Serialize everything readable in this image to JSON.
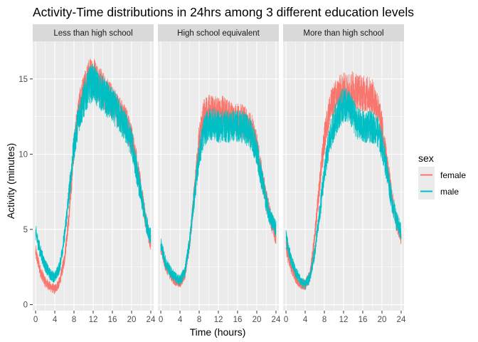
{
  "chart_data": {
    "type": "line",
    "title": "Activity-Time distributions in 24hrs among 3 different education levels",
    "xlabel": "Time (hours)",
    "ylabel": "Activity (minutes)",
    "xlim": [
      -0.6,
      24.6
    ],
    "ylim": [
      -0.4,
      17.5
    ],
    "x_ticks": [
      0,
      4,
      8,
      12,
      16,
      20,
      24
    ],
    "y_ticks": [
      0,
      5,
      10,
      15
    ],
    "grid": true,
    "legend": {
      "title": "sex",
      "position": "right",
      "entries": [
        "female",
        "male"
      ]
    },
    "colors": {
      "female": "#F8766D",
      "male": "#00BFC4",
      "panel_bg": "#EBEBEB",
      "strip_bg": "#D9D9D9",
      "grid": "#FFFFFF"
    },
    "facets": [
      {
        "label": "Less than high school",
        "series": [
          {
            "name": "female",
            "x": [
              0,
              1,
              2,
              3,
              4,
              5,
              6,
              7,
              8,
              9,
              10,
              11,
              12,
              13,
              14,
              15,
              16,
              17,
              18,
              19,
              20,
              21,
              22,
              23,
              24
            ],
            "y": [
              3.5,
              2.2,
              1.5,
              1.2,
              1.0,
              1.5,
              3.0,
              6.0,
              10.5,
              13.0,
              14.0,
              15.0,
              15.3,
              14.8,
              14.3,
              13.8,
              13.5,
              13.0,
              12.5,
              12.0,
              11.0,
              9.5,
              7.5,
              5.5,
              4.0
            ]
          },
          {
            "name": "male",
            "x": [
              0,
              1,
              2,
              3,
              4,
              5,
              6,
              7,
              8,
              9,
              10,
              11,
              12,
              13,
              14,
              15,
              16,
              17,
              18,
              19,
              20,
              21,
              22,
              23,
              24
            ],
            "y": [
              4.8,
              3.5,
              2.6,
              2.0,
              1.8,
              2.5,
              4.5,
              7.5,
              10.5,
              12.5,
              13.5,
              14.5,
              14.8,
              14.3,
              14.0,
              13.6,
              13.2,
              12.8,
              12.2,
              11.6,
              10.8,
              9.0,
              7.2,
              5.5,
              4.5
            ]
          }
        ]
      },
      {
        "label": "High school equivalent",
        "series": [
          {
            "name": "female",
            "x": [
              0,
              1,
              2,
              3,
              4,
              5,
              6,
              7,
              8,
              9,
              10,
              11,
              12,
              13,
              14,
              15,
              16,
              17,
              18,
              19,
              20,
              21,
              22,
              23,
              24
            ],
            "y": [
              3.8,
              2.6,
              2.0,
              1.6,
              1.4,
              2.0,
              4.0,
              7.5,
              11.0,
              12.5,
              12.8,
              12.8,
              12.6,
              12.8,
              12.5,
              12.4,
              12.3,
              12.2,
              12.0,
              11.6,
              10.5,
              8.6,
              7.0,
              5.6,
              4.5
            ]
          },
          {
            "name": "male",
            "x": [
              0,
              1,
              2,
              3,
              4,
              5,
              6,
              7,
              8,
              9,
              10,
              11,
              12,
              13,
              14,
              15,
              16,
              17,
              18,
              19,
              20,
              21,
              22,
              23,
              24
            ],
            "y": [
              4.0,
              2.8,
              2.2,
              1.8,
              1.6,
              2.2,
              4.2,
              7.2,
              10.0,
              11.5,
              12.0,
              12.0,
              11.8,
              11.9,
              11.8,
              11.9,
              11.9,
              11.8,
              11.6,
              11.2,
              10.2,
              8.4,
              6.8,
              5.6,
              5.0
            ]
          }
        ]
      },
      {
        "label": "More than high school",
        "series": [
          {
            "name": "female",
            "x": [
              0,
              1,
              2,
              3,
              4,
              5,
              6,
              7,
              8,
              9,
              10,
              11,
              12,
              13,
              14,
              15,
              16,
              17,
              18,
              19,
              20,
              21,
              22,
              23,
              24
            ],
            "y": [
              3.8,
              2.5,
              1.8,
              1.4,
              1.3,
              2.0,
              4.5,
              8.0,
              11.0,
              12.8,
              13.6,
              14.0,
              14.2,
              14.2,
              14.3,
              14.2,
              14.0,
              14.0,
              13.8,
              13.2,
              11.8,
              9.5,
              7.2,
              5.5,
              4.5
            ]
          },
          {
            "name": "male",
            "x": [
              0,
              1,
              2,
              3,
              4,
              5,
              6,
              7,
              8,
              9,
              10,
              11,
              12,
              13,
              14,
              15,
              16,
              17,
              18,
              19,
              20,
              21,
              22,
              23,
              24
            ],
            "y": [
              4.5,
              3.0,
              2.2,
              1.6,
              1.3,
              1.8,
              3.5,
              6.0,
              8.8,
              10.8,
              12.0,
              12.8,
              13.3,
              13.2,
              12.6,
              12.0,
              11.8,
              11.8,
              11.8,
              11.6,
              10.6,
              9.0,
              7.0,
              5.6,
              4.8
            ]
          }
        ]
      }
    ]
  }
}
